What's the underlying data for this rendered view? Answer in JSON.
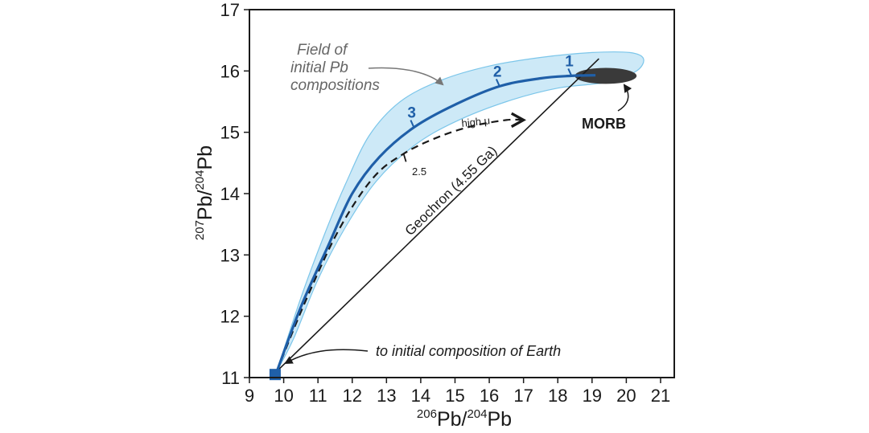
{
  "chart_data": {
    "type": "line",
    "xlabel": {
      "sup1": "206",
      "base1": "Pb/",
      "sup2": "204",
      "base2": "Pb"
    },
    "ylabel": {
      "sup1": "207",
      "base1": "Pb/",
      "sup2": "204",
      "base2": "Pb"
    },
    "xlim": [
      9,
      21.4
    ],
    "ylim": [
      11,
      17
    ],
    "xticks": [
      9,
      10,
      11,
      12,
      13,
      14,
      15,
      16,
      17,
      18,
      19,
      20,
      21
    ],
    "yticks": [
      11,
      12,
      13,
      14,
      15,
      16,
      17
    ],
    "series": [
      {
        "id": "evolution-curve",
        "color": "#1f5fa8",
        "style": "solid",
        "points": [
          [
            9.8,
            11.1
          ],
          [
            10.5,
            12.15
          ],
          [
            11.3,
            13.15
          ],
          [
            12.0,
            14.0
          ],
          [
            12.8,
            14.6
          ],
          [
            13.8,
            15.08
          ],
          [
            15.0,
            15.45
          ],
          [
            16.3,
            15.75
          ],
          [
            17.5,
            15.88
          ],
          [
            18.4,
            15.92
          ],
          [
            19.1,
            15.93
          ]
        ]
      },
      {
        "id": "high-mu-curve",
        "color": "#1a1a1a",
        "style": "dashed",
        "label": "high μ",
        "points": [
          [
            9.8,
            11.1
          ],
          [
            10.6,
            12.2
          ],
          [
            11.6,
            13.4
          ],
          [
            12.6,
            14.25
          ],
          [
            13.5,
            14.65
          ],
          [
            14.5,
            14.92
          ],
          [
            15.5,
            15.1
          ],
          [
            16.5,
            15.2
          ],
          [
            17.0,
            15.2
          ]
        ]
      },
      {
        "id": "geochron",
        "color": "#1a1a1a",
        "style": "solid",
        "label": "Geochron (4.55 Ga)",
        "points": [
          [
            9.85,
            11.13
          ],
          [
            19.2,
            16.2
          ]
        ]
      }
    ],
    "field": {
      "label": [
        "Field of",
        "initial Pb",
        "compositions"
      ],
      "color": "#cde9f7",
      "upper": [
        [
          9.8,
          11.1
        ],
        [
          10.5,
          12.3
        ],
        [
          11.2,
          13.35
        ],
        [
          11.8,
          14.15
        ],
        [
          12.5,
          14.95
        ],
        [
          13.4,
          15.5
        ],
        [
          14.6,
          15.85
        ],
        [
          16.0,
          16.08
        ],
        [
          17.5,
          16.22
        ],
        [
          19.0,
          16.3
        ],
        [
          20.1,
          16.3
        ],
        [
          20.5,
          16.2
        ]
      ],
      "lower": [
        [
          20.3,
          16.0
        ],
        [
          19.5,
          15.82
        ],
        [
          18.0,
          15.72
        ],
        [
          16.5,
          15.5
        ],
        [
          15.0,
          15.17
        ],
        [
          13.8,
          14.78
        ],
        [
          12.7,
          14.2
        ],
        [
          11.8,
          13.45
        ],
        [
          11.0,
          12.6
        ],
        [
          10.3,
          11.65
        ],
        [
          9.8,
          11.1
        ]
      ]
    },
    "age_markers": [
      {
        "label": "1",
        "x": 18.4,
        "y": 15.92
      },
      {
        "label": "2",
        "x": 16.3,
        "y": 15.75
      },
      {
        "label": "3",
        "x": 13.8,
        "y": 15.08
      }
    ],
    "tick_25": {
      "label": "2.5",
      "x": 13.5,
      "y": 14.65
    },
    "morb": {
      "label": "MORB",
      "cx": 19.4,
      "cy": 15.92,
      "rx": 0.9,
      "ry": 0.13,
      "color": "#3a3a3a"
    },
    "initial_point": {
      "x": 9.75,
      "y": 11.05,
      "color": "#1f5fa8"
    },
    "annotations": {
      "initial_composition": "to initial composition of Earth"
    }
  }
}
